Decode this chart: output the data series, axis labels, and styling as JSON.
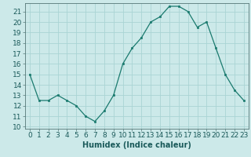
{
  "x": [
    0,
    1,
    2,
    3,
    4,
    5,
    6,
    7,
    8,
    9,
    10,
    11,
    12,
    13,
    14,
    15,
    16,
    17,
    18,
    19,
    20,
    21,
    22,
    23
  ],
  "y": [
    15,
    12.5,
    12.5,
    13,
    12.5,
    12,
    11,
    10.5,
    11.5,
    13,
    16,
    17.5,
    18.5,
    20,
    20.5,
    21.5,
    21.5,
    21,
    19.5,
    20,
    17.5,
    15,
    13.5,
    12.5
  ],
  "line_color": "#1a7a6e",
  "marker_color": "#1a7a6e",
  "bg_color": "#cce9e9",
  "grid_color": "#aad4d4",
  "xlabel": "Humidex (Indice chaleur)",
  "xlim": [
    -0.5,
    23.5
  ],
  "ylim": [
    9.8,
    21.8
  ],
  "yticks": [
    10,
    11,
    12,
    13,
    14,
    15,
    16,
    17,
    18,
    19,
    20,
    21
  ],
  "xticks": [
    0,
    1,
    2,
    3,
    4,
    5,
    6,
    7,
    8,
    9,
    10,
    11,
    12,
    13,
    14,
    15,
    16,
    17,
    18,
    19,
    20,
    21,
    22,
    23
  ],
  "xlabel_fontsize": 7,
  "tick_fontsize": 6.5
}
